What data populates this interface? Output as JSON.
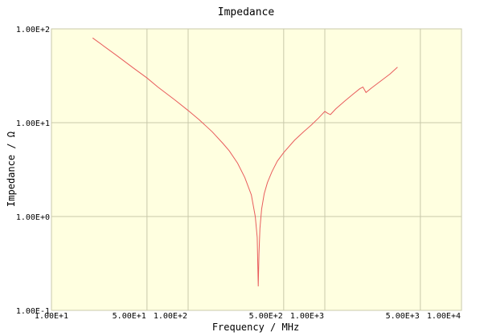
{
  "chart_data": {
    "type": "line",
    "title": "Impedance",
    "xlabel": "Frequency / MHz",
    "ylabel": "Impedance / Ω",
    "xscale": "log",
    "yscale": "log",
    "xlim": [
      10,
      10000
    ],
    "ylim": [
      0.1,
      100
    ],
    "grid": true,
    "x_ticks": [
      {
        "value": 10,
        "label": "1.00E+1"
      },
      {
        "value": 50,
        "label": "5.00E+1"
      },
      {
        "value": 100,
        "label": "1.00E+2"
      },
      {
        "value": 500,
        "label": "5.00E+2"
      },
      {
        "value": 1000,
        "label": "1.00E+3"
      },
      {
        "value": 5000,
        "label": "5.00E+3"
      },
      {
        "value": 10000,
        "label": "1.00E+4"
      }
    ],
    "y_ticks": [
      {
        "value": 0.1,
        "label": "1.00E-1"
      },
      {
        "value": 1,
        "label": "1.00E+0"
      },
      {
        "value": 10,
        "label": "1.00E+1"
      },
      {
        "value": 100,
        "label": "1.00E+2"
      }
    ],
    "colors": {
      "plot_background": "#ffffe0",
      "grid": "#c8c8aa",
      "line": "#e85c5c",
      "frame": "#c8c8aa"
    },
    "series": [
      {
        "x": [
          20,
          30,
          40,
          50,
          60,
          80,
          100,
          120,
          150,
          180,
          200,
          230,
          260,
          290,
          310,
          320,
          326,
          330,
          335,
          345,
          360,
          380,
          410,
          450,
          500,
          600,
          700,
          800,
          900,
          1000,
          1050,
          1100,
          1200,
          1400,
          1600,
          1800,
          1900,
          2000,
          2200,
          2500,
          3000,
          3400
        ],
        "y": [
          80,
          52,
          38,
          30,
          24,
          17.5,
          13.5,
          10.8,
          8.0,
          6.0,
          5.0,
          3.7,
          2.6,
          1.7,
          1.0,
          0.6,
          0.18,
          0.4,
          0.75,
          1.2,
          1.75,
          2.3,
          3.0,
          3.9,
          4.8,
          6.5,
          8.0,
          9.5,
          11.2,
          13.2,
          12.6,
          12.2,
          14.0,
          17.0,
          20.0,
          23.0,
          24.0,
          21.0,
          23.5,
          27.0,
          33.0,
          39.0
        ]
      }
    ]
  }
}
